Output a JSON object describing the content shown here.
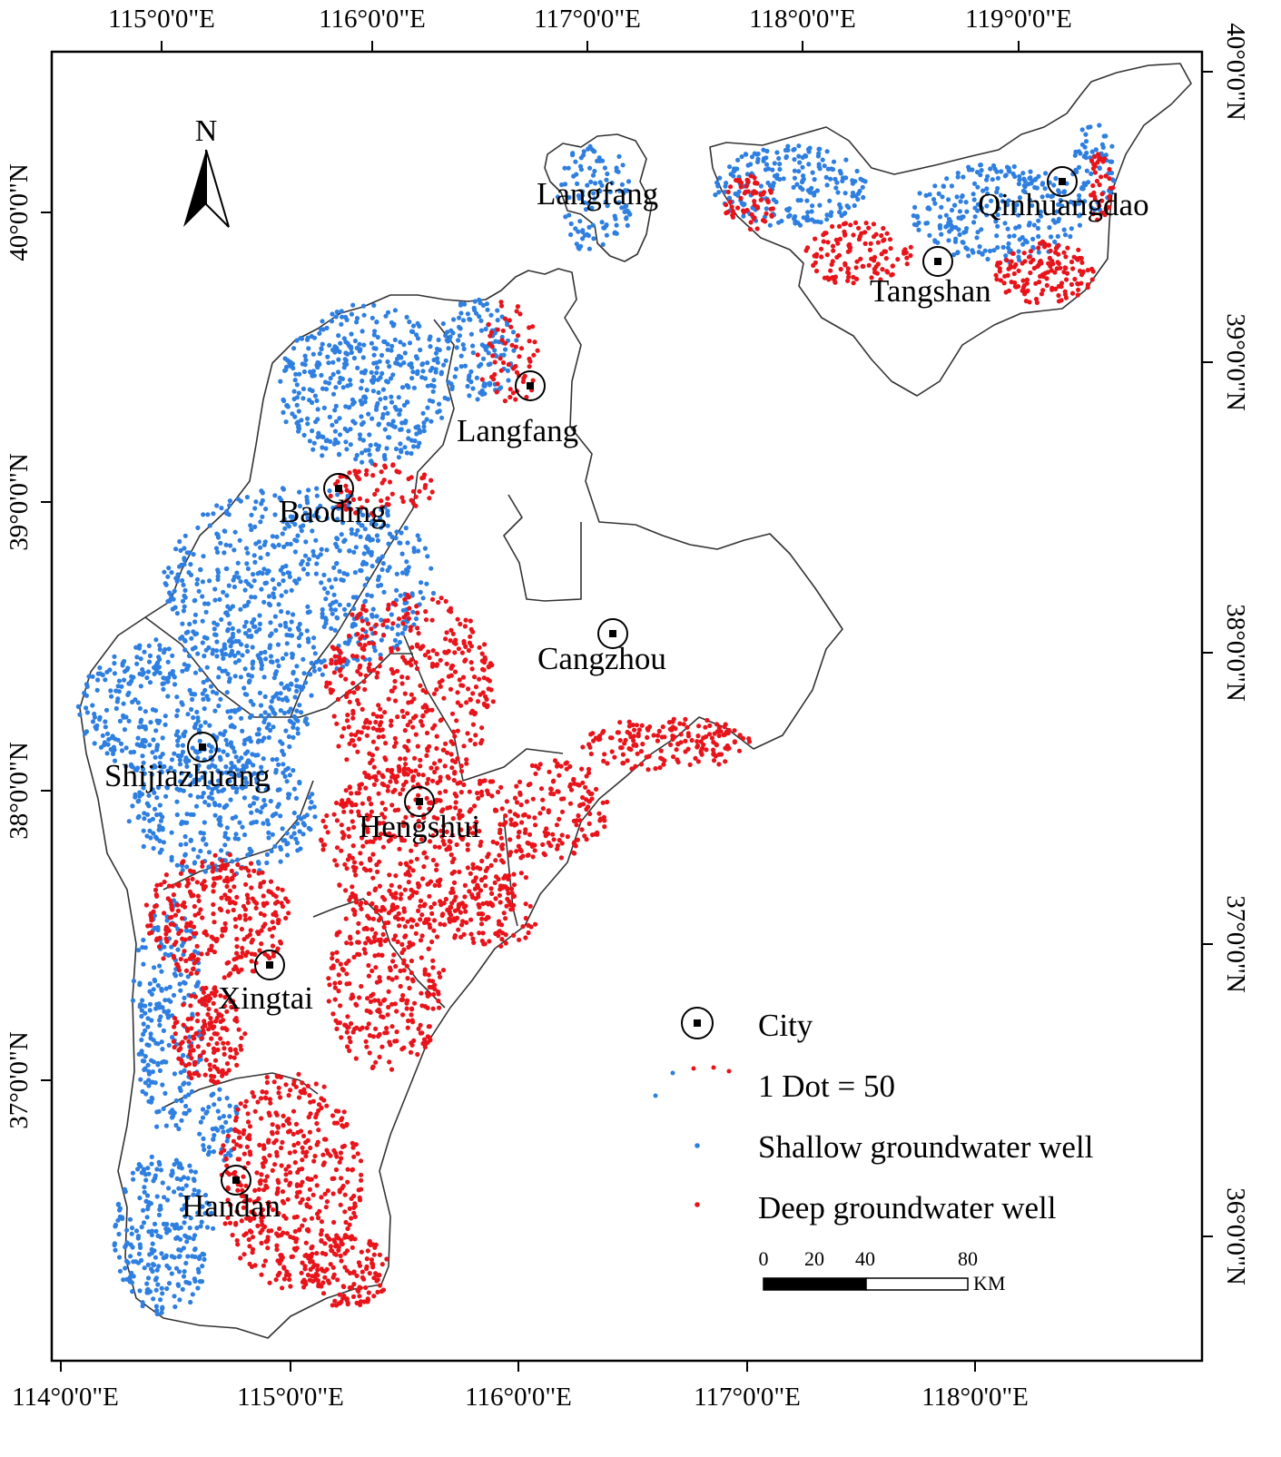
{
  "top_lon_labels": [
    "115°0'0\"E",
    "116°0'0\"E",
    "117°0'0\"E",
    "118°0'0\"E",
    "119°0'0\"E"
  ],
  "bottom_lon_labels": [
    "114°0'0\"E",
    "115°0'0\"E",
    "116°0'0\"E",
    "117°0'0\"E",
    "118°0'0\"E"
  ],
  "left_lat_labels": [
    "40°0'0\"N",
    "39°0'0\"N",
    "38°0'0\"N",
    "37°0'0\"N"
  ],
  "right_lat_labels": [
    "40°0'0\"N",
    "39°0'0\"N",
    "38°0'0\"N",
    "37°0'0\"N",
    "36°0'0\"N"
  ],
  "north_arrow": "N",
  "cities": [
    {
      "id": "langfang-north",
      "label": "Langfang",
      "marker": false
    },
    {
      "id": "qinhuangdao",
      "label": "Qinhuangdao",
      "marker": true
    },
    {
      "id": "tangshan",
      "label": "Tangshan",
      "marker": true
    },
    {
      "id": "langfang",
      "label": "Langfang",
      "marker": true
    },
    {
      "id": "baoding",
      "label": "Baoding",
      "marker": true
    },
    {
      "id": "cangzhou",
      "label": "Cangzhou",
      "marker": true
    },
    {
      "id": "shijiazhuang",
      "label": "Shijiazhuang",
      "marker": true
    },
    {
      "id": "hengshui",
      "label": "Hengshui",
      "marker": true
    },
    {
      "id": "xingtai",
      "label": "Xingtai",
      "marker": true
    },
    {
      "id": "handan",
      "label": "Handan",
      "marker": true
    }
  ],
  "legend": {
    "city": "City",
    "dot": "1 Dot = 50",
    "shallow": "Shallow groundwater well",
    "deep": "Deep groundwater well"
  },
  "scale_bar": {
    "ticks": [
      "0",
      "20",
      "40",
      "80"
    ],
    "unit": "KM"
  },
  "colors": {
    "shallow": "#2e7fe0",
    "deep": "#e8141b",
    "boundary": "#333333"
  }
}
